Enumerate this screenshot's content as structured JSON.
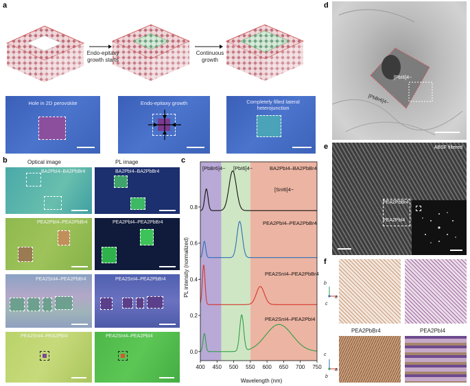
{
  "panels": {
    "a": "a",
    "b": "b",
    "c": "c",
    "d": "d",
    "e": "e",
    "f": "f"
  },
  "panel_a": {
    "arrow1_label": "Endo-epitaxy growth starts",
    "arrow2_label": "Continuous growth",
    "captions": [
      "Hole in 2D perovskite",
      "Endo-epitaxy growth",
      "Completely filled lateral heterojunction"
    ]
  },
  "panel_b": {
    "col_optical": "Optical image",
    "col_pl": "PL image",
    "rows": [
      {
        "optical_label": "BA2PbI4–BA2PbBr4",
        "pl_label": "BA2PbI4–BA2PbBr4"
      },
      {
        "optical_label": "PEA2PbI4–PEA2PbBr4",
        "pl_label": "PEA2PbI4–PEA2PbBr4"
      },
      {
        "optical_label": "PEA2SnI4–PEA2PbBr4",
        "pl_label": "PEA2SnI4–PEA2PbBr4"
      },
      {
        "optical_label": "PEA2SnI4–PEA2PbI4",
        "pl_label": "PEA2SnI4–PEA2PbI4"
      }
    ]
  },
  "panel_d": {
    "label_inner": "[PbI6]4−",
    "label_outer": "[PbBr6]4−"
  },
  "panel_e": {
    "title": "ABSF filtered",
    "label_top": "PEA2PbBr4",
    "label_bottom": "PEA2PbI4"
  },
  "panel_f": {
    "label_left": "PEA2PbBr4",
    "label_right": "PEA2PbI4",
    "axes_top": {
      "b": "b",
      "a": "a",
      "c": "c"
    },
    "axes_bottom": {
      "c": "c",
      "a": "a",
      "b": "b"
    }
  },
  "colors": {
    "band_purple": "#b9a9d6",
    "band_green": "#cfe6c4",
    "band_red": "#ecb4a2",
    "trace_black": "#111111",
    "trace_blue": "#2a6fb8",
    "trace_red": "#d4362b",
    "trace_green": "#2e9e48"
  },
  "chart_data": {
    "type": "line",
    "xlabel": "Wavelength (nm)",
    "ylabel": "PL intensity (normalized)",
    "xlim": [
      400,
      750
    ],
    "ylim": [
      -0.05,
      1.05
    ],
    "x_ticks": [
      400,
      450,
      500,
      550,
      600,
      650,
      700,
      750
    ],
    "y_ticks": [
      0,
      0.2,
      0.4,
      0.6,
      0.8
    ],
    "bands": [
      {
        "label": "[PbBr6]4−",
        "from": 400,
        "to": 463,
        "color": "#b9a9d6"
      },
      {
        "label": "[PbI6]4−",
        "from": 463,
        "to": 550,
        "color": "#cfe6c4"
      },
      {
        "label": "[SnI6]4−",
        "from": 550,
        "to": 750,
        "color": "#ecb4a2"
      }
    ],
    "series": [
      {
        "name": "BA2PbI4–BA2PbBr4",
        "color": "#111111",
        "baseline": 0.78,
        "peaks": [
          {
            "x": 418,
            "h": 0.12,
            "w": 5
          },
          {
            "x": 497,
            "h": 0.22,
            "w": 11
          }
        ]
      },
      {
        "name": "PEA2PbI4–PEA2PbBr4",
        "color": "#2a6fb8",
        "baseline": 0.52,
        "peaks": [
          {
            "x": 412,
            "h": 0.09,
            "w": 4
          },
          {
            "x": 518,
            "h": 0.2,
            "w": 8
          }
        ]
      },
      {
        "name": "PEA2SnI4–PEA2PbBr4",
        "color": "#d4362b",
        "baseline": 0.26,
        "peaks": [
          {
            "x": 410,
            "h": 0.22,
            "w": 4
          },
          {
            "x": 580,
            "h": 0.1,
            "w": 12
          }
        ]
      },
      {
        "name": "PEA2SnI4–PEA2PbI4",
        "color": "#2e9e48",
        "baseline": 0.0,
        "peaks": [
          {
            "x": 412,
            "h": 0.1,
            "w": 4
          },
          {
            "x": 524,
            "h": 0.2,
            "w": 6
          },
          {
            "x": 636,
            "h": 0.15,
            "w": 40
          }
        ]
      }
    ]
  }
}
